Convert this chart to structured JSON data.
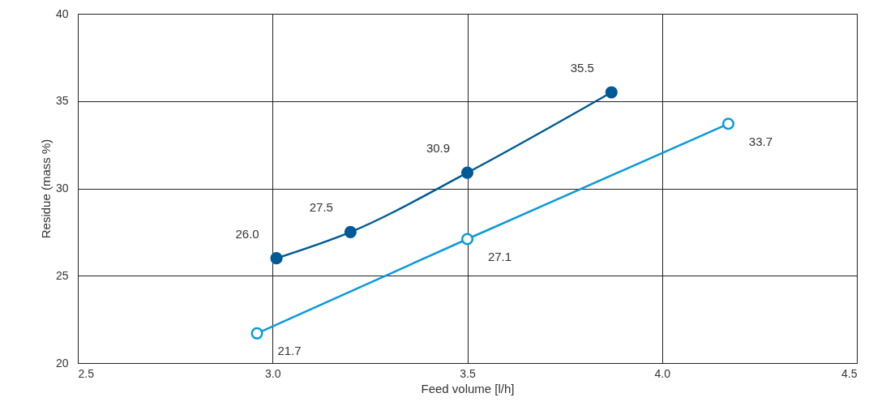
{
  "chart_data": {
    "type": "line",
    "xlabel": "Feed volume [l/h]",
    "ylabel": "Residue (mass %)",
    "xlim": [
      2.5,
      4.5
    ],
    "xticks": [
      2.5,
      {
        "value": 3,
        "label": "3.0"
      },
      3.5,
      {
        "value": 4,
        "label": "4.0"
      },
      4.5
    ],
    "ylim": [
      20,
      40
    ],
    "yticks": [
      20,
      25,
      30,
      35,
      40
    ],
    "grid": true,
    "marker": "circle",
    "series": [
      {
        "color": "#005a96",
        "x": [
          3.01,
          3.2,
          3.5,
          3.87
        ],
        "values": [
          26.0,
          27.5,
          30.9,
          35.5
        ],
        "value_labels": [
          "26.0",
          "27.5",
          "30.9",
          "35.5"
        ]
      },
      {
        "color": "#0a9ad8",
        "x": [
          2.96,
          3.5,
          4.17
        ],
        "values": [
          21.7,
          27.1,
          33.7
        ],
        "value_labels": [
          "21.7",
          "27.1",
          "33.7"
        ]
      }
    ]
  }
}
